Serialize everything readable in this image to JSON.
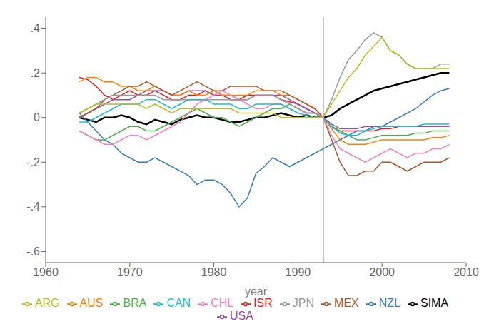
{
  "chart_data": {
    "type": "line",
    "xlabel": "year",
    "xlim": [
      1960,
      2010
    ],
    "xticks": [
      1960,
      1970,
      1980,
      1990,
      2000,
      2010
    ],
    "ylim": [
      -0.65,
      0.45
    ],
    "yticks": [
      {
        "value": -0.6,
        "label": "-.6"
      },
      {
        "value": -0.4,
        "label": "-.4"
      },
      {
        "value": -0.2,
        "label": "-.2"
      },
      0,
      {
        "value": 0.2,
        "label": ".2"
      },
      {
        "value": 0.4,
        "label": ".4"
      }
    ],
    "grid": false,
    "legend": "bottom",
    "vline": 1993,
    "x": [
      1964,
      1965,
      1966,
      1967,
      1968,
      1969,
      1970,
      1971,
      1972,
      1973,
      1974,
      1975,
      1976,
      1977,
      1978,
      1979,
      1980,
      1981,
      1982,
      1983,
      1984,
      1985,
      1986,
      1987,
      1988,
      1989,
      1990,
      1991,
      1992,
      1993,
      1994,
      1995,
      1996,
      1997,
      1998,
      1999,
      2000,
      2001,
      2002,
      2003,
      2004,
      2005,
      2006,
      2007,
      2008
    ],
    "series": [
      {
        "name": "SIMA",
        "color": "#000000",
        "values": [
          0.0,
          -0.01,
          -0.02,
          0.0,
          0.0,
          0.01,
          0.0,
          -0.02,
          -0.03,
          -0.01,
          -0.02,
          -0.03,
          -0.01,
          0.0,
          0.01,
          0.0,
          0.0,
          -0.01,
          -0.02,
          -0.02,
          -0.01,
          0.0,
          0.0,
          0.01,
          0.02,
          0.01,
          0.0,
          0.01,
          0.0,
          0.0,
          0.01,
          0.04,
          0.06,
          0.08,
          0.1,
          0.12,
          0.13,
          0.14,
          0.15,
          0.16,
          0.17,
          0.18,
          0.19,
          0.2,
          0.2
        ]
      },
      {
        "name": "ISR",
        "color": "#e41a1c",
        "values": [
          0.18,
          0.17,
          0.14,
          0.1,
          0.08,
          0.1,
          0.12,
          0.1,
          0.1,
          0.12,
          0.1,
          0.08,
          0.08,
          0.1,
          0.1,
          0.12,
          0.1,
          0.1,
          0.08,
          0.08,
          0.1,
          0.1,
          0.1,
          0.1,
          0.08,
          0.07,
          0.06,
          0.04,
          0.02,
          0.0,
          -0.04,
          -0.06,
          -0.06,
          -0.06,
          -0.06,
          -0.06,
          -0.05,
          -0.05,
          -0.04,
          -0.04,
          -0.04,
          -0.04,
          -0.04,
          -0.04,
          -0.04
        ]
      },
      {
        "name": "NZL",
        "color": "#377eb8",
        "values": [
          0.02,
          -0.02,
          -0.06,
          -0.1,
          -0.12,
          -0.16,
          -0.18,
          -0.2,
          -0.2,
          -0.18,
          -0.2,
          -0.22,
          -0.24,
          -0.26,
          -0.3,
          -0.28,
          -0.28,
          -0.3,
          -0.34,
          -0.4,
          -0.36,
          -0.25,
          -0.22,
          -0.18,
          -0.2,
          -0.22,
          -0.2,
          -0.18,
          -0.16,
          -0.14,
          -0.12,
          -0.1,
          -0.08,
          -0.06,
          -0.06,
          -0.04,
          -0.04,
          -0.02,
          0.0,
          0.02,
          0.04,
          0.07,
          0.1,
          0.12,
          0.13
        ]
      },
      {
        "name": "BRA",
        "color": "#4daf4a",
        "values": [
          -0.06,
          -0.08,
          -0.1,
          -0.1,
          -0.08,
          -0.06,
          -0.04,
          -0.04,
          -0.06,
          -0.06,
          -0.04,
          -0.02,
          0.0,
          0.02,
          0.04,
          0.02,
          0.0,
          0.0,
          -0.02,
          -0.04,
          -0.02,
          0.0,
          0.02,
          0.04,
          0.04,
          0.06,
          0.04,
          0.02,
          0.02,
          0.0,
          -0.04,
          -0.06,
          -0.08,
          -0.1,
          -0.1,
          -0.09,
          -0.08,
          -0.08,
          -0.08,
          -0.08,
          -0.07,
          -0.07,
          -0.06,
          -0.06,
          -0.06
        ]
      },
      {
        "name": "USA",
        "color": "#984ea3",
        "values": [
          0.0,
          0.02,
          0.04,
          0.06,
          0.08,
          0.08,
          0.08,
          0.1,
          0.12,
          0.12,
          0.12,
          0.1,
          0.1,
          0.12,
          0.12,
          0.12,
          0.1,
          0.1,
          0.1,
          0.08,
          0.08,
          0.1,
          0.1,
          0.1,
          0.1,
          0.08,
          0.06,
          0.04,
          0.02,
          0.0,
          -0.03,
          -0.05,
          -0.05,
          -0.05,
          -0.04,
          -0.04,
          -0.04,
          -0.04,
          -0.04,
          -0.04,
          -0.04,
          -0.04,
          -0.04,
          -0.04,
          -0.04
        ]
      },
      {
        "name": "AUS",
        "color": "#ff7f00",
        "values": [
          0.16,
          0.18,
          0.18,
          0.16,
          0.16,
          0.14,
          0.14,
          0.12,
          0.12,
          0.14,
          0.12,
          0.1,
          0.1,
          0.12,
          0.1,
          0.1,
          0.12,
          0.1,
          0.1,
          0.1,
          0.1,
          0.12,
          0.12,
          0.12,
          0.1,
          0.1,
          0.08,
          0.06,
          0.04,
          0.0,
          -0.05,
          -0.1,
          -0.12,
          -0.12,
          -0.12,
          -0.11,
          -0.1,
          -0.1,
          -0.1,
          -0.1,
          -0.1,
          -0.1,
          -0.09,
          -0.09,
          -0.08
        ]
      },
      {
        "name": "MEX",
        "color": "#a65628",
        "values": [
          0.0,
          0.02,
          0.04,
          0.08,
          0.1,
          0.12,
          0.14,
          0.14,
          0.16,
          0.14,
          0.12,
          0.1,
          0.12,
          0.14,
          0.16,
          0.14,
          0.12,
          0.12,
          0.14,
          0.14,
          0.14,
          0.14,
          0.12,
          0.12,
          0.12,
          0.1,
          0.08,
          0.06,
          0.04,
          0.0,
          -0.1,
          -0.2,
          -0.26,
          -0.26,
          -0.24,
          -0.24,
          -0.2,
          -0.2,
          -0.22,
          -0.24,
          -0.22,
          -0.2,
          -0.2,
          -0.2,
          -0.18
        ]
      },
      {
        "name": "CHL",
        "color": "#f781bf",
        "values": [
          -0.06,
          -0.08,
          -0.1,
          -0.12,
          -0.12,
          -0.1,
          -0.08,
          -0.08,
          -0.1,
          -0.08,
          -0.06,
          -0.04,
          -0.02,
          0.02,
          0.06,
          0.08,
          0.1,
          0.12,
          0.1,
          0.08,
          0.06,
          0.04,
          0.04,
          0.06,
          0.06,
          0.04,
          0.02,
          0.02,
          0.02,
          0.0,
          -0.08,
          -0.14,
          -0.16,
          -0.18,
          -0.2,
          -0.18,
          -0.16,
          -0.14,
          -0.16,
          -0.18,
          -0.16,
          -0.16,
          -0.14,
          -0.14,
          -0.12
        ]
      },
      {
        "name": "JPN",
        "color": "#999999",
        "values": [
          0.02,
          0.04,
          0.06,
          0.08,
          0.1,
          0.1,
          0.1,
          0.1,
          0.1,
          0.1,
          0.08,
          0.08,
          0.08,
          0.08,
          0.08,
          0.08,
          0.08,
          0.08,
          0.08,
          0.08,
          0.08,
          0.1,
          0.1,
          0.1,
          0.08,
          0.06,
          0.04,
          0.02,
          0.02,
          0.0,
          0.08,
          0.18,
          0.26,
          0.3,
          0.35,
          0.38,
          0.36,
          0.3,
          0.28,
          0.24,
          0.22,
          0.22,
          0.22,
          0.24,
          0.24
        ]
      },
      {
        "name": "CAN",
        "color": "#17becf",
        "values": [
          -0.02,
          -0.02,
          0.0,
          0.02,
          0.04,
          0.06,
          0.06,
          0.06,
          0.08,
          0.08,
          0.06,
          0.04,
          0.06,
          0.08,
          0.08,
          0.08,
          0.06,
          0.06,
          0.06,
          0.04,
          0.04,
          0.06,
          0.06,
          0.06,
          0.06,
          0.04,
          0.02,
          0.01,
          0.0,
          0.0,
          -0.04,
          -0.07,
          -0.08,
          -0.08,
          -0.06,
          -0.05,
          -0.04,
          -0.04,
          -0.04,
          -0.04,
          -0.04,
          -0.03,
          -0.03,
          -0.03,
          -0.03
        ]
      },
      {
        "name": "ARG",
        "color": "#bcbd22",
        "values": [
          0.02,
          0.04,
          0.06,
          0.06,
          0.06,
          0.06,
          0.06,
          0.06,
          0.04,
          0.06,
          0.04,
          0.02,
          0.04,
          0.04,
          0.04,
          0.04,
          0.04,
          0.04,
          0.04,
          0.02,
          0.02,
          0.02,
          0.02,
          0.02,
          0.0,
          0.0,
          0.0,
          0.0,
          0.0,
          0.0,
          0.06,
          0.12,
          0.18,
          0.22,
          0.28,
          0.32,
          0.36,
          0.3,
          0.28,
          0.24,
          0.22,
          0.22,
          0.22,
          0.22,
          0.22
        ]
      }
    ]
  }
}
